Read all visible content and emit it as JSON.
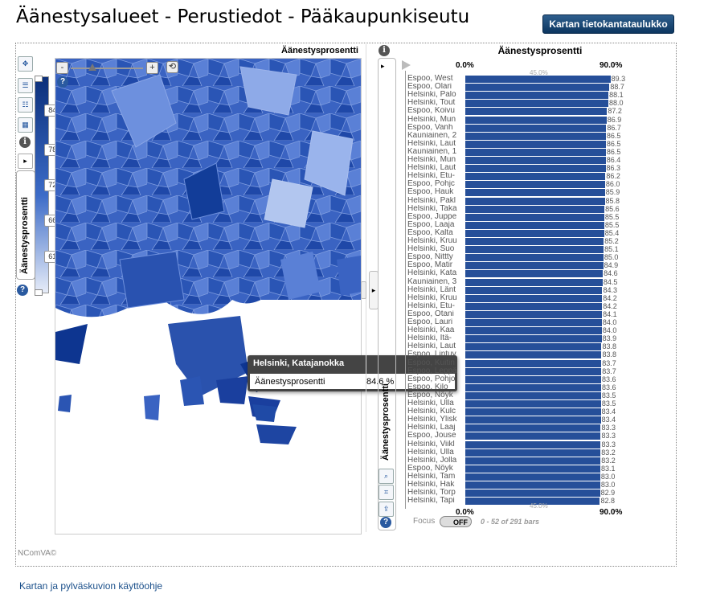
{
  "header": {
    "title": "Äänestysalueet - Perustiedot - Pääkaupunkiseutu",
    "table_button": "Kartan tietokantataulukko"
  },
  "map": {
    "title": "Äänestysprosentti",
    "zoom_minus": "-",
    "zoom_plus": "+",
    "legend_tab": "Äänestysprosentti",
    "slider_ticks": [
      "84.3",
      "78.1",
      "72.5",
      "66.8",
      "61.2"
    ],
    "tooltip": {
      "title": "Helsinki, Katajanokka",
      "label": "Äänestysprosentti",
      "value": "84.6 %"
    }
  },
  "chart_tab": "Äänestysprosentti",
  "chart_data": {
    "type": "bar",
    "title": "Äänestysprosentti",
    "axis_min_label": "0.0%",
    "axis_mid_label": "45.0%",
    "axis_max_label": "90.0%",
    "xlim": [
      0,
      90
    ],
    "categories": [
      "Espoo,  West",
      "Espoo,  Olari",
      "Helsinki, Palo",
      "Helsinki, Tout",
      "Espoo,  Koivu",
      "Helsinki, Mun",
      "Espoo,  Vanh",
      "Kauniainen, 2",
      "Helsinki, Laut",
      "Kauniainen, 1",
      "Helsinki, Mun",
      "Helsinki, Laut",
      "Helsinki, Etu-",
      "Espoo,  Pohjc",
      "Espoo,  Hauk",
      "Helsinki, Pakl",
      "Helsinki, Taka",
      "Espoo,  Juppe",
      "Espoo,  Laaja",
      "Espoo,  Kalta",
      "Helsinki, Kruu",
      "Helsinki, Suo",
      "Espoo,  Nittty",
      "Espoo,  Matir",
      "Helsinki, Kata",
      "Kauniainen, 3",
      "Helsinki, Länt",
      "Helsinki, Kruu",
      "Helsinki, Etu-",
      "Espoo,  Otani",
      "Espoo,  Lauri",
      "Helsinki, Kaa",
      "Helsinki, Itä-",
      "Helsinki, Laut",
      "Espoo,  Lintuv",
      "Espoo,  Kuitin",
      "Espoo,  Leppä",
      "Espoo,  Pohjo",
      "Espoo,  Kilo",
      "Espoo,  Nöyk",
      "Helsinki, Ulla",
      "Helsinki, Kulc",
      "Helsinki, Ylisk",
      "Helsinki, Laaj",
      "Espoo,  Jouse",
      "Helsinki, Viikl",
      "Helsinki, Ulla",
      "Helsinki, Jolla",
      "Espoo,  Nöyk",
      "Helsinki, Tam",
      "Helsinki, Hak",
      "Helsinki, Torp",
      "Helsinki, Tapi"
    ],
    "values": [
      89.3,
      88.7,
      88.1,
      88.0,
      87.2,
      86.9,
      86.7,
      86.5,
      86.5,
      86.5,
      86.4,
      86.3,
      86.2,
      86.0,
      85.9,
      85.8,
      85.6,
      85.5,
      85.5,
      85.4,
      85.2,
      85.1,
      85.0,
      84.9,
      84.6,
      84.5,
      84.3,
      84.2,
      84.2,
      84.1,
      84.0,
      84.0,
      83.9,
      83.8,
      83.8,
      83.7,
      83.7,
      83.6,
      83.6,
      83.5,
      83.5,
      83.4,
      83.4,
      83.3,
      83.3,
      83.3,
      83.2,
      83.2,
      83.1,
      83.0,
      83.0,
      82.9,
      82.8
    ]
  },
  "focus": {
    "label": "Focus",
    "toggle": "OFF",
    "range_text": "0 - 52 of 291 bars"
  },
  "footer": {
    "brand": "NComVA©",
    "help_link": "Kartan ja pylväskuvion käyttöohje"
  },
  "colors": {
    "bar": "#264f99",
    "map_dark": "#0d3a9a",
    "map_light": "#b6c8ee"
  }
}
